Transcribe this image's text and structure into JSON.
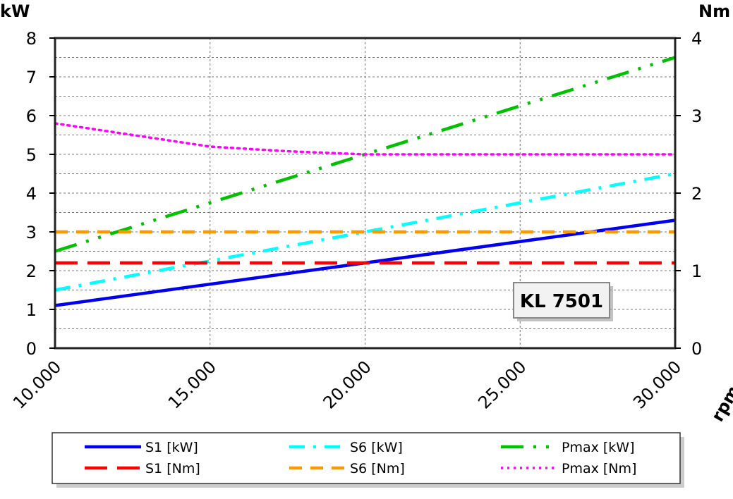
{
  "chart_data": {
    "type": "line",
    "title": "",
    "annotation": "KL 7501",
    "xlabel": "rpm",
    "ylabel_left": "kW",
    "ylabel_right": "Nm",
    "xlim": [
      10000,
      30000
    ],
    "ylim_left": [
      0,
      8
    ],
    "ylim_right": [
      0,
      4
    ],
    "x_ticks": [
      10000,
      15000,
      20000,
      25000,
      30000
    ],
    "x_tick_labels": [
      "10.000",
      "15.000",
      "20.000",
      "25.000",
      "30.000"
    ],
    "y_left_ticks": [
      "0",
      "1",
      "2",
      "3",
      "4",
      "5",
      "6",
      "7",
      "8"
    ],
    "y_right_ticks": [
      "0",
      "1",
      "2",
      "3",
      "4"
    ],
    "grid": true,
    "legend_position": "bottom",
    "series": [
      {
        "name": "S1 [kW]",
        "axis": "left",
        "color": "#0000ee",
        "style": "solid",
        "x": [
          10000,
          30000
        ],
        "values": [
          1.1,
          3.3
        ]
      },
      {
        "name": "S6 [kW]",
        "axis": "left",
        "color": "#00ffff",
        "style": "dashdot",
        "x": [
          10000,
          30000
        ],
        "values": [
          1.5,
          4.5
        ]
      },
      {
        "name": "Pmax [kW]",
        "axis": "left",
        "color": "#00c000",
        "style": "dashdotdot",
        "x": [
          10000,
          30000
        ],
        "values": [
          2.5,
          7.5
        ]
      },
      {
        "name": "S1 [Nm]",
        "axis": "right",
        "color": "#ff0000",
        "style": "longdash",
        "x": [
          10000,
          30000
        ],
        "values": [
          1.1,
          1.1
        ]
      },
      {
        "name": "S6 [Nm]",
        "axis": "right",
        "color": "#ff9900",
        "style": "dash",
        "x": [
          10000,
          30000
        ],
        "values": [
          1.5,
          1.5
        ]
      },
      {
        "name": "Pmax [Nm]",
        "axis": "right",
        "color": "#ff00ff",
        "style": "dot",
        "x": [
          10000,
          12500,
          15000,
          17500,
          20000,
          25000,
          30000
        ],
        "values": [
          2.9,
          2.75,
          2.6,
          2.54,
          2.5,
          2.5,
          2.5
        ]
      }
    ]
  }
}
